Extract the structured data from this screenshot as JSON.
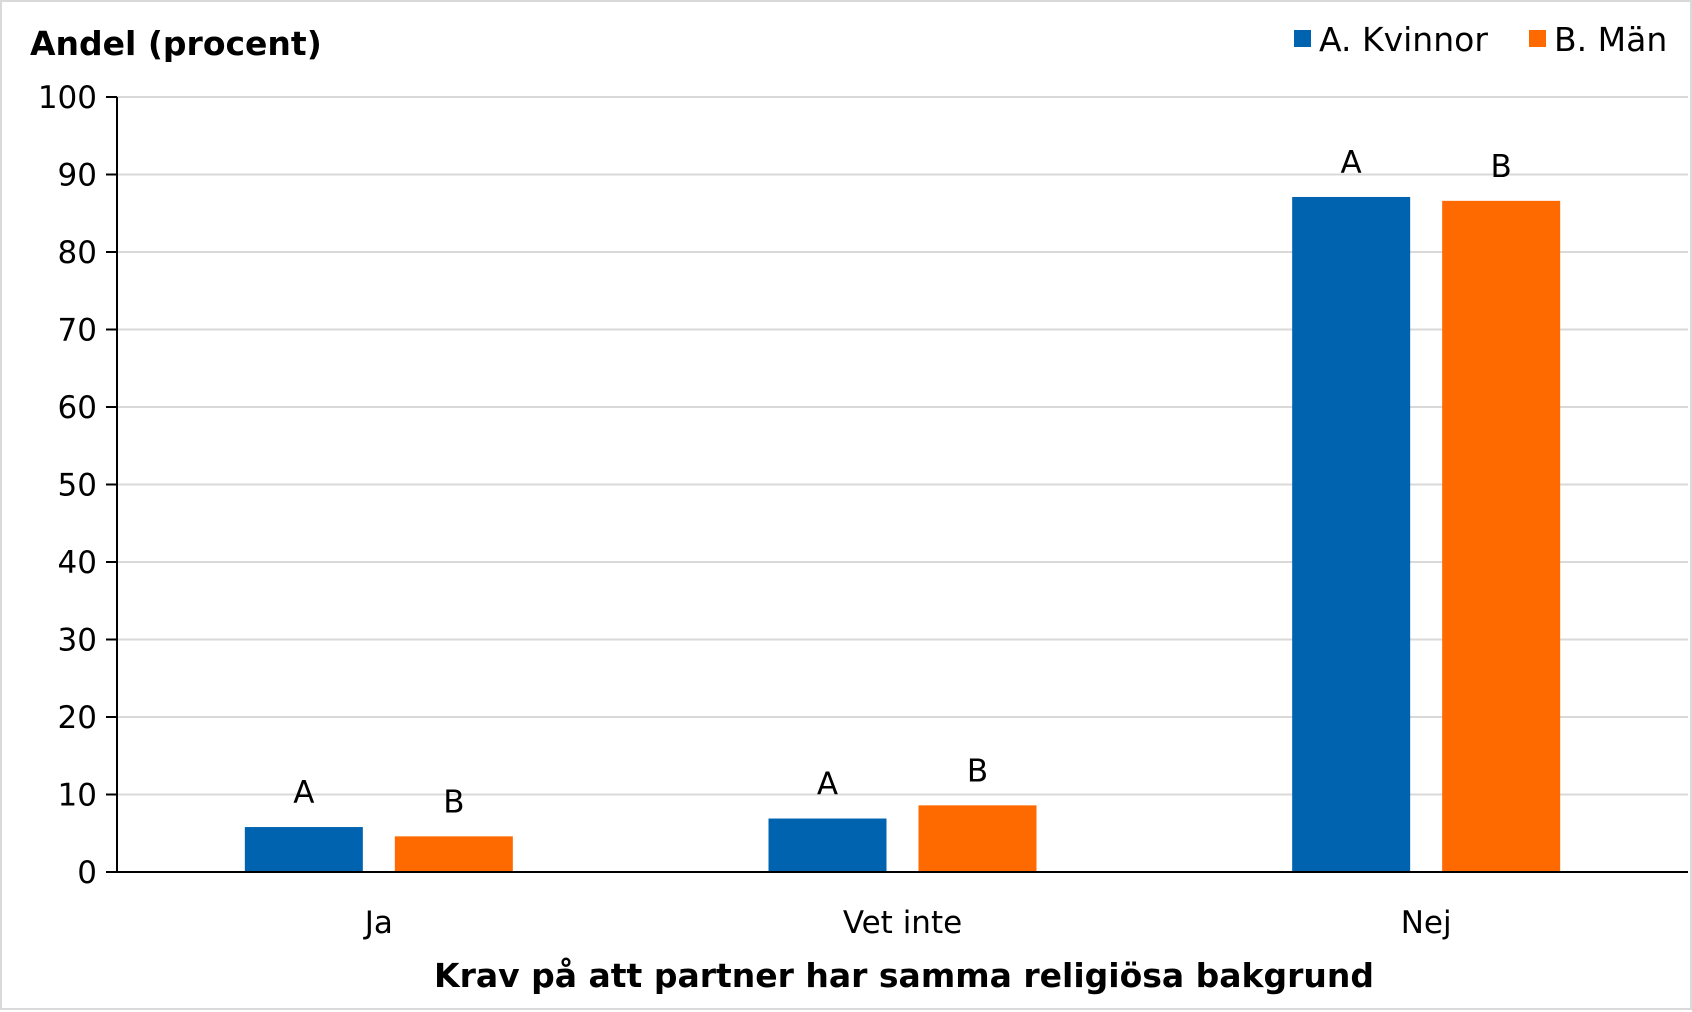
{
  "chart_data": {
    "type": "bar",
    "ylabel": "Andel (procent)",
    "xlabel": "Krav på att partner har samma religiösa bakgrund",
    "categories": [
      "Ja",
      "Vet inte",
      "Nej"
    ],
    "ylim": [
      0,
      100
    ],
    "yticks": [
      0,
      10,
      20,
      30,
      40,
      50,
      60,
      70,
      80,
      90,
      100
    ],
    "grid": true,
    "legend_position": "top-right",
    "series": [
      {
        "name": "A. Kvinnor",
        "label": "A",
        "color": "#0063AF",
        "values": [
          5.8,
          6.9,
          87.1
        ]
      },
      {
        "name": "B. Män",
        "label": "B",
        "color": "#FF6A00",
        "values": [
          4.6,
          8.6,
          86.6
        ]
      }
    ]
  }
}
